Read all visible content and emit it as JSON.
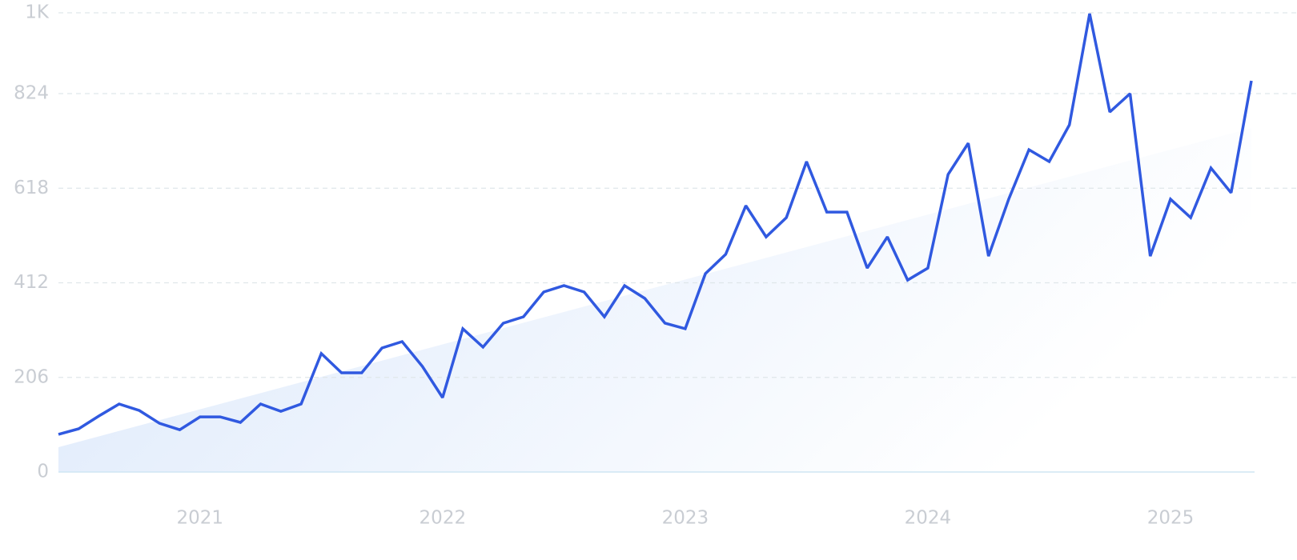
{
  "chart_data": {
    "type": "line",
    "categories": [
      null,
      null,
      null,
      null,
      null,
      null,
      null,
      "2021",
      null,
      null,
      null,
      null,
      null,
      null,
      null,
      null,
      null,
      null,
      null,
      "2022",
      null,
      null,
      null,
      null,
      null,
      null,
      null,
      null,
      null,
      null,
      null,
      "2023",
      null,
      null,
      null,
      null,
      null,
      null,
      null,
      null,
      null,
      null,
      null,
      "2024",
      null,
      null,
      null,
      null,
      null,
      null,
      null,
      null,
      null,
      null,
      null,
      "2025",
      null,
      null,
      null,
      null
    ],
    "series": [
      {
        "color": "#3059e0",
        "values": [
          82,
          94,
          122,
          148,
          134,
          106,
          92,
          120,
          120,
          108,
          148,
          132,
          148,
          258,
          216,
          216,
          270,
          284,
          230,
          162,
          312,
          272,
          324,
          338,
          392,
          406,
          392,
          338,
          406,
          378,
          324,
          312,
          432,
          474,
          580,
          512,
          554,
          676,
          566,
          566,
          444,
          512,
          418,
          444,
          648,
          716,
          470,
          594,
          702,
          676,
          756,
          998,
          784,
          824,
          470,
          594,
          554,
          662,
          608,
          852
        ]
      }
    ],
    "trend": {
      "color": "#dbe8fb",
      "values": [
        54,
        749
      ]
    },
    "ylim": [
      0,
      1000
    ],
    "yticks": [
      0,
      206,
      412,
      618,
      824,
      {
        "value": 1000,
        "label": "1K"
      }
    ],
    "grid": true
  }
}
